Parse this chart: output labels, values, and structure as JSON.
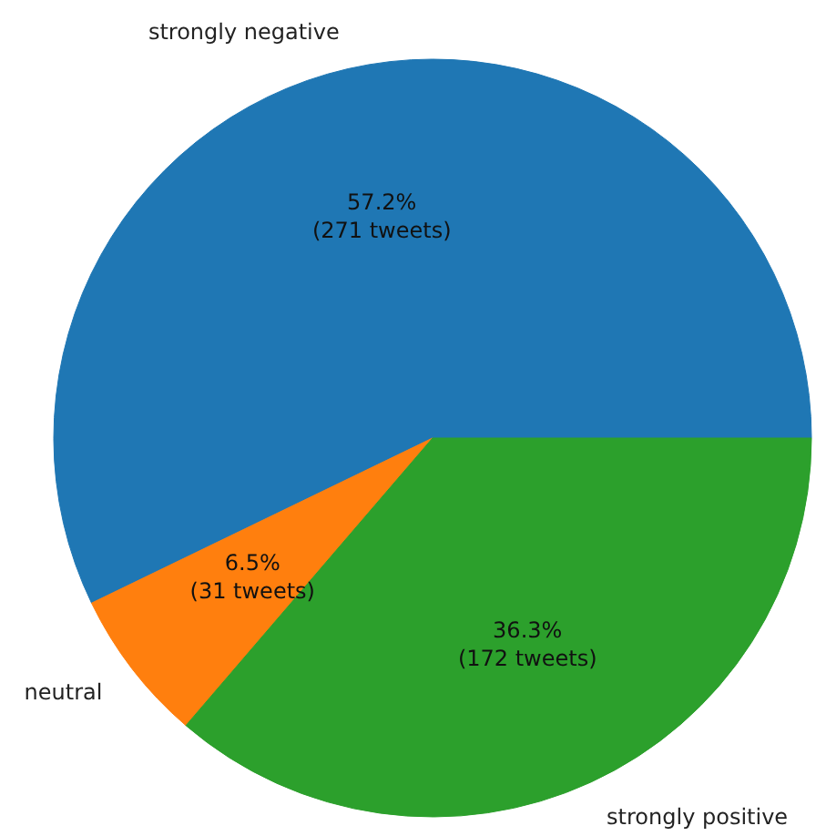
{
  "chart_data": {
    "type": "pie",
    "categories": [
      "strongly negative",
      "neutral",
      "strongly positive"
    ],
    "values": [
      271,
      31,
      172
    ],
    "colors": [
      "#1f77b4",
      "#ff7f0e",
      "#2ca02c"
    ],
    "value_labels": [
      "57.2%\n(271 tweets)",
      "6.5%\n(31 tweets)",
      "36.3%\n(172 tweets)"
    ]
  }
}
